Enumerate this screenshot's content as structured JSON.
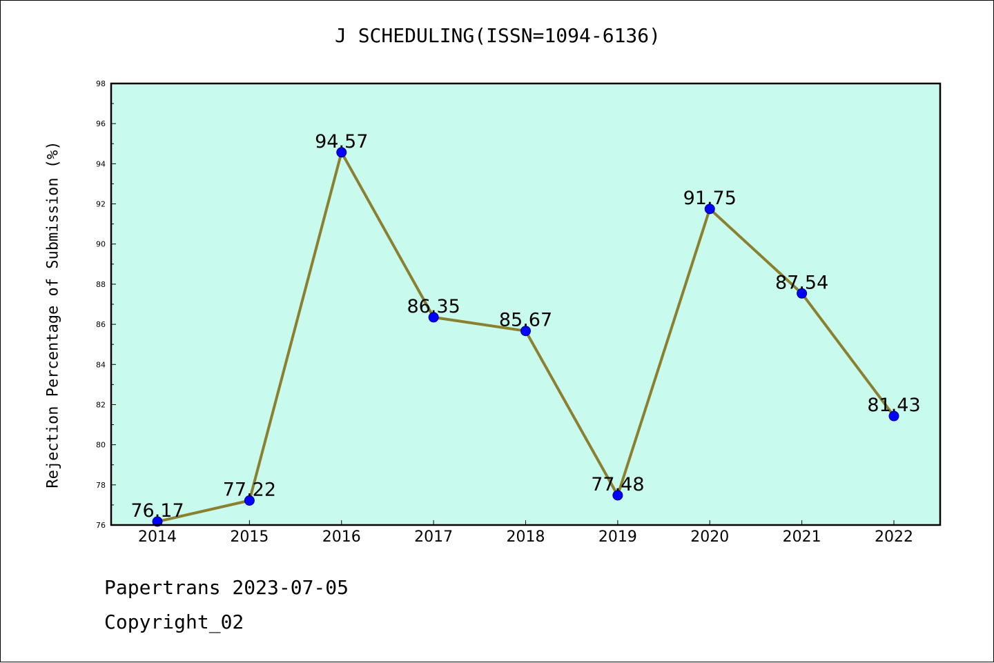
{
  "title": "J SCHEDULING(ISSN=1094-6136)",
  "colors": {
    "plot_background": "#c8fbee",
    "line": "#8b8030",
    "marker": "#0000ff",
    "axis": "#000000"
  },
  "chart_data": {
    "type": "line",
    "title": "J SCHEDULING(ISSN=1094-6136)",
    "xlabel": "",
    "ylabel": "Rejection Percentage of Submission (%)",
    "categories": [
      "2014",
      "2015",
      "2016",
      "2017",
      "2018",
      "2019",
      "2020",
      "2021",
      "2022"
    ],
    "values": [
      76.17,
      77.22,
      94.57,
      86.35,
      85.67,
      77.48,
      91.75,
      87.54,
      81.43
    ],
    "data_labels": [
      "76.17",
      "77.22",
      "94.57",
      "86.35",
      "85.67",
      "77.48",
      "91.75",
      "87.54",
      "81.43"
    ],
    "ylim": [
      76,
      98
    ],
    "yticks": [
      "76",
      "78",
      "80",
      "82",
      "84",
      "86",
      "88",
      "90",
      "92",
      "94",
      "96",
      "98"
    ],
    "grid": false,
    "legend": "none"
  },
  "footer": {
    "line1": "Papertrans 2023-07-05",
    "line2": "Copyright_02"
  }
}
